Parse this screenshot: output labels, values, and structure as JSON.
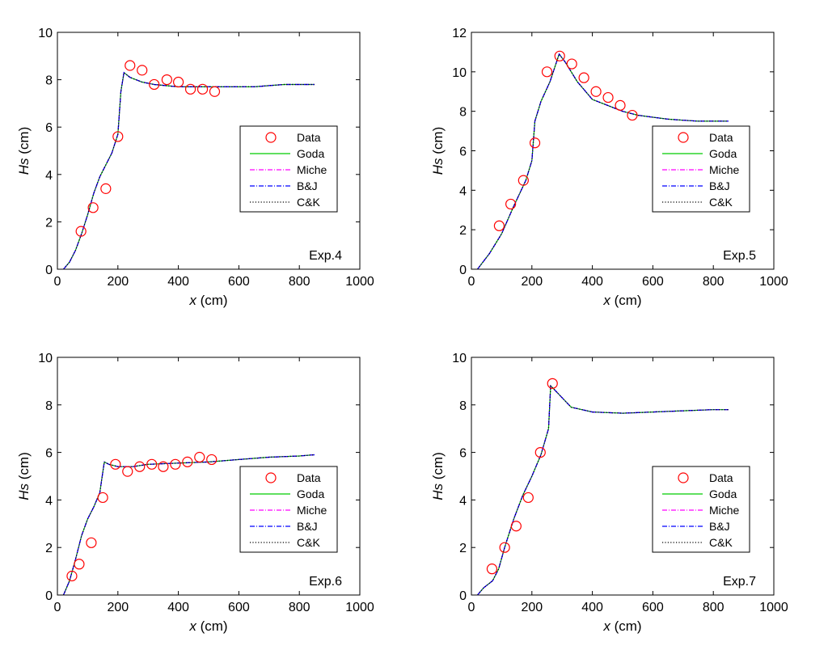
{
  "legend_labels": [
    "Data",
    "Goda",
    "Miche",
    "B&J",
    "C&K"
  ],
  "xlabel": "x (cm)",
  "ylabel": "Hs (cm)",
  "colors": {
    "data": "#ff0000",
    "goda": "#00cc00",
    "miche": "#ff00ff",
    "bj": "#0000ff",
    "ck": "#000000"
  },
  "chart_data": [
    {
      "type": "line",
      "annotation": "Exp.4",
      "xlim": [
        0,
        1000
      ],
      "ylim": [
        0,
        10
      ],
      "xticks": [
        0,
        200,
        400,
        600,
        800,
        1000
      ],
      "yticks": [
        0,
        2,
        4,
        6,
        8,
        10
      ],
      "series": [
        {
          "name": "Data",
          "kind": "scatter",
          "x": [
            78,
            118,
            160,
            200,
            240,
            280,
            320,
            362,
            400,
            440,
            480,
            520
          ],
          "y": [
            1.6,
            2.6,
            3.4,
            5.6,
            8.6,
            8.4,
            7.8,
            8.0,
            7.9,
            7.6,
            7.6,
            7.5
          ]
        },
        {
          "name": "Goda",
          "x": [
            20,
            40,
            60,
            80,
            100,
            120,
            140,
            160,
            180,
            200,
            210,
            220,
            240,
            280,
            320,
            400,
            500,
            600,
            650,
            700,
            750,
            800,
            850
          ],
          "y": [
            0.0,
            0.3,
            0.8,
            1.5,
            2.3,
            3.2,
            3.9,
            4.4,
            4.9,
            5.7,
            7.5,
            8.3,
            8.1,
            7.9,
            7.8,
            7.7,
            7.7,
            7.7,
            7.7,
            7.75,
            7.8,
            7.8,
            7.8
          ]
        },
        {
          "name": "Miche",
          "x": [
            20,
            40,
            60,
            80,
            100,
            120,
            140,
            160,
            180,
            200,
            210,
            220,
            240,
            280,
            320,
            400,
            500,
            600,
            650,
            700,
            750,
            800,
            850
          ],
          "y": [
            0.0,
            0.3,
            0.8,
            1.5,
            2.3,
            3.2,
            3.9,
            4.4,
            4.9,
            5.7,
            7.5,
            8.3,
            8.1,
            7.9,
            7.8,
            7.7,
            7.7,
            7.7,
            7.7,
            7.75,
            7.8,
            7.8,
            7.8
          ]
        },
        {
          "name": "B&J",
          "x": [
            20,
            40,
            60,
            80,
            100,
            120,
            140,
            160,
            180,
            200,
            210,
            220,
            240,
            280,
            320,
            400,
            500,
            600,
            650,
            700,
            750,
            800,
            850
          ],
          "y": [
            0.0,
            0.3,
            0.8,
            1.5,
            2.3,
            3.2,
            3.9,
            4.4,
            4.9,
            5.7,
            7.5,
            8.3,
            8.1,
            7.9,
            7.8,
            7.7,
            7.7,
            7.7,
            7.7,
            7.75,
            7.8,
            7.8,
            7.8
          ]
        },
        {
          "name": "C&K",
          "x": [
            20,
            40,
            60,
            80,
            100,
            120,
            140,
            160,
            180,
            200,
            210,
            220,
            240,
            280,
            320,
            400,
            500,
            600,
            650,
            700,
            750,
            800,
            850
          ],
          "y": [
            0.0,
            0.3,
            0.8,
            1.5,
            2.3,
            3.2,
            3.9,
            4.4,
            4.9,
            5.7,
            7.5,
            8.3,
            8.1,
            7.9,
            7.8,
            7.7,
            7.7,
            7.7,
            7.7,
            7.75,
            7.8,
            7.8,
            7.8
          ]
        }
      ]
    },
    {
      "type": "line",
      "annotation": "Exp.5",
      "xlim": [
        0,
        1000
      ],
      "ylim": [
        0,
        12
      ],
      "xticks": [
        0,
        200,
        400,
        600,
        800,
        1000
      ],
      "yticks": [
        0,
        2,
        4,
        6,
        8,
        10,
        12
      ],
      "series": [
        {
          "name": "Data",
          "kind": "scatter",
          "x": [
            92,
            130,
            172,
            210,
            250,
            292,
            332,
            372,
            412,
            452,
            492,
            532
          ],
          "y": [
            2.2,
            3.3,
            4.5,
            6.4,
            10.0,
            10.8,
            10.4,
            9.7,
            9.0,
            8.7,
            8.3,
            7.8
          ]
        },
        {
          "name": "Goda",
          "x": [
            20,
            60,
            100,
            140,
            180,
            200,
            210,
            230,
            260,
            290,
            310,
            350,
            400,
            450,
            500,
            550,
            600,
            650,
            700,
            750,
            800,
            850
          ],
          "y": [
            0.0,
            0.8,
            1.8,
            3.2,
            4.5,
            5.5,
            7.5,
            8.5,
            9.5,
            10.9,
            10.5,
            9.5,
            8.6,
            8.3,
            8.0,
            7.8,
            7.7,
            7.6,
            7.55,
            7.5,
            7.5,
            7.5
          ]
        },
        {
          "name": "Miche",
          "x": [
            20,
            60,
            100,
            140,
            180,
            200,
            210,
            230,
            260,
            290,
            310,
            350,
            400,
            450,
            500,
            550,
            600,
            650,
            700,
            750,
            800,
            850
          ],
          "y": [
            0.0,
            0.8,
            1.8,
            3.2,
            4.5,
            5.5,
            7.5,
            8.5,
            9.5,
            10.9,
            10.5,
            9.5,
            8.6,
            8.3,
            8.0,
            7.8,
            7.7,
            7.6,
            7.55,
            7.5,
            7.5,
            7.5
          ]
        },
        {
          "name": "B&J",
          "x": [
            20,
            60,
            100,
            140,
            180,
            200,
            210,
            230,
            260,
            290,
            310,
            350,
            400,
            450,
            500,
            550,
            600,
            650,
            700,
            750,
            800,
            850
          ],
          "y": [
            0.0,
            0.8,
            1.8,
            3.2,
            4.5,
            5.5,
            7.5,
            8.5,
            9.5,
            10.9,
            10.5,
            9.5,
            8.6,
            8.3,
            8.0,
            7.8,
            7.7,
            7.6,
            7.55,
            7.5,
            7.5,
            7.5
          ]
        },
        {
          "name": "C&K",
          "x": [
            20,
            60,
            100,
            140,
            180,
            200,
            210,
            230,
            260,
            290,
            310,
            350,
            400,
            450,
            500,
            550,
            600,
            650,
            700,
            750,
            800,
            850
          ],
          "y": [
            0.0,
            0.8,
            1.8,
            3.2,
            4.5,
            5.5,
            7.5,
            8.5,
            9.5,
            10.9,
            10.5,
            9.5,
            8.6,
            8.3,
            8.0,
            7.8,
            7.7,
            7.6,
            7.55,
            7.5,
            7.5,
            7.5
          ]
        }
      ]
    },
    {
      "type": "line",
      "annotation": "Exp.6",
      "xlim": [
        0,
        1000
      ],
      "ylim": [
        0,
        10
      ],
      "xticks": [
        0,
        200,
        400,
        600,
        800,
        1000
      ],
      "yticks": [
        0,
        2,
        4,
        6,
        8,
        10
      ],
      "series": [
        {
          "name": "Data",
          "kind": "scatter",
          "x": [
            48,
            72,
            112,
            150,
            192,
            232,
            272,
            312,
            350,
            390,
            430,
            470,
            510
          ],
          "y": [
            0.8,
            1.3,
            2.2,
            4.1,
            5.5,
            5.2,
            5.4,
            5.5,
            5.4,
            5.5,
            5.6,
            5.8,
            5.7
          ]
        },
        {
          "name": "Goda",
          "x": [
            20,
            40,
            60,
            80,
            100,
            120,
            140,
            148,
            155,
            170,
            200,
            250,
            300,
            400,
            500,
            600,
            700,
            800,
            850
          ],
          "y": [
            0.0,
            0.6,
            1.5,
            2.5,
            3.2,
            3.7,
            4.3,
            5.0,
            5.6,
            5.5,
            5.4,
            5.4,
            5.5,
            5.55,
            5.6,
            5.7,
            5.8,
            5.85,
            5.9
          ]
        },
        {
          "name": "Miche",
          "x": [
            20,
            40,
            60,
            80,
            100,
            120,
            140,
            148,
            155,
            170,
            200,
            250,
            300,
            400,
            500,
            600,
            700,
            800,
            850
          ],
          "y": [
            0.0,
            0.6,
            1.5,
            2.5,
            3.2,
            3.7,
            4.3,
            5.0,
            5.6,
            5.5,
            5.4,
            5.4,
            5.5,
            5.55,
            5.6,
            5.7,
            5.8,
            5.85,
            5.9
          ]
        },
        {
          "name": "B&J",
          "x": [
            20,
            40,
            60,
            80,
            100,
            120,
            140,
            148,
            155,
            170,
            200,
            250,
            300,
            400,
            500,
            600,
            700,
            800,
            850
          ],
          "y": [
            0.0,
            0.6,
            1.5,
            2.5,
            3.2,
            3.7,
            4.3,
            5.0,
            5.6,
            5.5,
            5.4,
            5.4,
            5.5,
            5.55,
            5.6,
            5.7,
            5.8,
            5.85,
            5.9
          ]
        },
        {
          "name": "C&K",
          "x": [
            20,
            40,
            60,
            80,
            100,
            120,
            140,
            148,
            155,
            170,
            200,
            250,
            300,
            400,
            500,
            600,
            700,
            800,
            850
          ],
          "y": [
            0.0,
            0.6,
            1.5,
            2.5,
            3.2,
            3.7,
            4.3,
            5.0,
            5.6,
            5.5,
            5.4,
            5.4,
            5.5,
            5.55,
            5.6,
            5.7,
            5.8,
            5.85,
            5.9
          ]
        }
      ]
    },
    {
      "type": "line",
      "annotation": "Exp.7",
      "xlim": [
        0,
        1000
      ],
      "ylim": [
        0,
        10
      ],
      "xticks": [
        0,
        200,
        400,
        600,
        800,
        1000
      ],
      "yticks": [
        0,
        2,
        4,
        6,
        8,
        10
      ],
      "series": [
        {
          "name": "Data",
          "kind": "scatter",
          "x": [
            68,
            110,
            148,
            188,
            228,
            268
          ],
          "y": [
            1.1,
            2.0,
            2.9,
            4.1,
            6.0,
            8.9
          ]
        },
        {
          "name": "Goda",
          "x": [
            20,
            40,
            70,
            90,
            110,
            140,
            170,
            200,
            230,
            255,
            262,
            270,
            300,
            330,
            400,
            500,
            600,
            700,
            800,
            850
          ],
          "y": [
            0.0,
            0.3,
            0.6,
            1.1,
            2.0,
            3.2,
            4.2,
            5.0,
            5.9,
            7.0,
            8.8,
            8.7,
            8.3,
            7.9,
            7.7,
            7.65,
            7.7,
            7.75,
            7.8,
            7.8
          ]
        },
        {
          "name": "Miche",
          "x": [
            20,
            40,
            70,
            90,
            110,
            140,
            170,
            200,
            230,
            255,
            262,
            270,
            300,
            330,
            400,
            500,
            600,
            700,
            800,
            850
          ],
          "y": [
            0.0,
            0.3,
            0.6,
            1.1,
            2.0,
            3.2,
            4.2,
            5.0,
            5.9,
            7.0,
            8.8,
            8.7,
            8.3,
            7.9,
            7.7,
            7.65,
            7.7,
            7.75,
            7.8,
            7.8
          ]
        },
        {
          "name": "B&J",
          "x": [
            20,
            40,
            70,
            90,
            110,
            140,
            170,
            200,
            230,
            255,
            262,
            270,
            300,
            330,
            400,
            500,
            600,
            700,
            800,
            850
          ],
          "y": [
            0.0,
            0.3,
            0.6,
            1.1,
            2.0,
            3.2,
            4.2,
            5.0,
            5.9,
            7.0,
            8.8,
            8.7,
            8.3,
            7.9,
            7.7,
            7.65,
            7.7,
            7.75,
            7.8,
            7.8
          ]
        },
        {
          "name": "C&K",
          "x": [
            20,
            40,
            70,
            90,
            110,
            140,
            170,
            200,
            230,
            255,
            262,
            270,
            300,
            330,
            400,
            500,
            600,
            700,
            800,
            850
          ],
          "y": [
            0.0,
            0.3,
            0.6,
            1.1,
            2.0,
            3.2,
            4.2,
            5.0,
            5.9,
            7.0,
            8.8,
            8.7,
            8.3,
            7.9,
            7.7,
            7.65,
            7.7,
            7.75,
            7.8,
            7.8
          ]
        }
      ]
    }
  ]
}
